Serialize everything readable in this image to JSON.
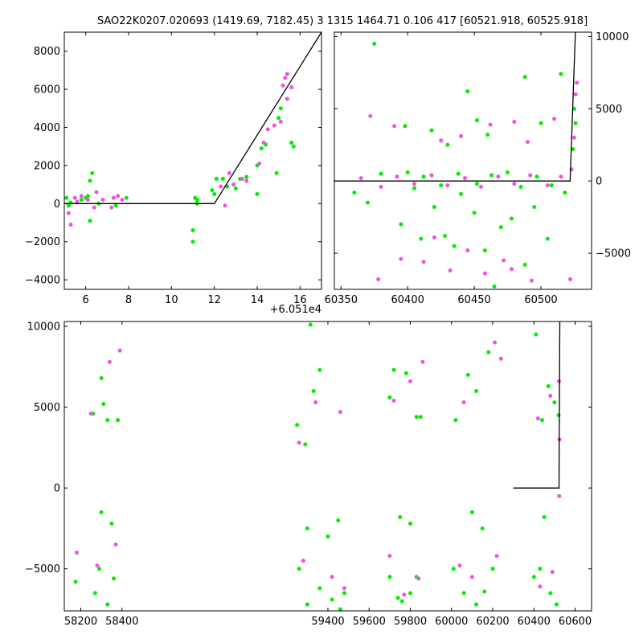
{
  "title": "SAO22K0207.020693 (1419.69, 7182.45)   3 1315 1464.71 0.106 417 [60521.918, 60525.918]",
  "colors": {
    "green": "#00ee00",
    "magenta": "#ee55dd",
    "model": "#000000"
  },
  "chart_data": [
    {
      "id": "top-left",
      "type": "scatter",
      "xlim": [
        5,
        17
      ],
      "ylim": [
        -4500,
        9000
      ],
      "xticks": [
        6,
        8,
        10,
        12,
        14,
        16
      ],
      "yticks": [
        -4000,
        -2000,
        0,
        2000,
        4000,
        6000,
        8000
      ],
      "xoffset_label": "+6.051e4",
      "yaxis_side": "left",
      "model_line": [
        [
          5,
          0
        ],
        [
          12,
          0
        ],
        [
          17,
          9000
        ]
      ],
      "series": [
        {
          "color": "green",
          "points": [
            [
              5.1,
              300
            ],
            [
              5.2,
              -100
            ],
            [
              5.3,
              50
            ],
            [
              5.8,
              200
            ],
            [
              6.0,
              300
            ],
            [
              6.1,
              400
            ],
            [
              6.2,
              -900
            ],
            [
              6.2,
              1200
            ],
            [
              6.3,
              1600
            ],
            [
              6.6,
              0
            ],
            [
              7.4,
              -100
            ],
            [
              7.9,
              300
            ],
            [
              11.0,
              -1400
            ],
            [
              11.0,
              -2000
            ],
            [
              11.1,
              300
            ],
            [
              11.2,
              200
            ],
            [
              11.2,
              0
            ],
            [
              11.9,
              700
            ],
            [
              12.0,
              500
            ],
            [
              12.1,
              1300
            ],
            [
              12.4,
              1300
            ],
            [
              12.6,
              900
            ],
            [
              13.0,
              800
            ],
            [
              13.2,
              1300
            ],
            [
              13.5,
              1400
            ],
            [
              14.0,
              500
            ],
            [
              14.0,
              2000
            ],
            [
              14.2,
              2900
            ],
            [
              14.4,
              3100
            ],
            [
              14.9,
              1600
            ],
            [
              15.0,
              4500
            ],
            [
              15.1,
              5000
            ],
            [
              15.6,
              3200
            ],
            [
              15.7,
              3000
            ]
          ]
        },
        {
          "color": "magenta",
          "points": [
            [
              5.2,
              -500
            ],
            [
              5.3,
              -1100
            ],
            [
              5.5,
              300
            ],
            [
              5.6,
              100
            ],
            [
              5.8,
              400
            ],
            [
              6.1,
              200
            ],
            [
              6.4,
              -200
            ],
            [
              6.5,
              600
            ],
            [
              6.8,
              200
            ],
            [
              7.2,
              -200
            ],
            [
              7.3,
              300
            ],
            [
              7.5,
              400
            ],
            [
              7.7,
              200
            ],
            [
              12.3,
              900
            ],
            [
              12.5,
              -100
            ],
            [
              12.7,
              1600
            ],
            [
              12.9,
              1000
            ],
            [
              13.3,
              1300
            ],
            [
              13.5,
              1200
            ],
            [
              14.1,
              2100
            ],
            [
              14.3,
              3200
            ],
            [
              14.5,
              3900
            ],
            [
              14.8,
              4100
            ],
            [
              15.1,
              4300
            ],
            [
              15.2,
              6200
            ],
            [
              15.3,
              6600
            ],
            [
              15.4,
              6800
            ],
            [
              15.4,
              5500
            ],
            [
              15.6,
              6100
            ]
          ]
        }
      ]
    },
    {
      "id": "top-right",
      "type": "scatter",
      "xlim": [
        60345,
        60538
      ],
      "ylim": [
        -7500,
        10300
      ],
      "xticks": [
        60350,
        60400,
        60450,
        60500
      ],
      "yticks": [
        -5000,
        0,
        5000,
        10000
      ],
      "yaxis_side": "right",
      "model_line": [
        [
          60345,
          0
        ],
        [
          60521.9,
          0
        ],
        [
          60525.9,
          10300
        ]
      ],
      "series": [
        {
          "color": "green",
          "points": [
            [
              60375,
              9500
            ],
            [
              60398,
              3800
            ],
            [
              60418,
              3500
            ],
            [
              60430,
              2500
            ],
            [
              60445,
              6200
            ],
            [
              60452,
              4200
            ],
            [
              60460,
              3200
            ],
            [
              60488,
              7200
            ],
            [
              60500,
              4000
            ],
            [
              60515,
              7400
            ],
            [
              60360,
              -800
            ],
            [
              60370,
              -1500
            ],
            [
              60380,
              500
            ],
            [
              60395,
              -3000
            ],
            [
              60405,
              -500
            ],
            [
              60410,
              -4000
            ],
            [
              60420,
              -1800
            ],
            [
              60428,
              -3800
            ],
            [
              60435,
              -4500
            ],
            [
              60440,
              -900
            ],
            [
              60450,
              -2200
            ],
            [
              60458,
              -4800
            ],
            [
              60465,
              -7300
            ],
            [
              60470,
              -3200
            ],
            [
              60478,
              -2600
            ],
            [
              60488,
              -5800
            ],
            [
              60495,
              -1800
            ],
            [
              60505,
              -4000
            ],
            [
              60518,
              -800
            ],
            [
              60400,
              600
            ],
            [
              60412,
              300
            ],
            [
              60425,
              -300
            ],
            [
              60438,
              500
            ],
            [
              60452,
              -200
            ],
            [
              60463,
              400
            ],
            [
              60475,
              600
            ],
            [
              60485,
              -400
            ],
            [
              60497,
              300
            ],
            [
              60508,
              -300
            ],
            [
              60524,
              2200
            ],
            [
              60525,
              5000
            ],
            [
              60526,
              4000
            ]
          ]
        },
        {
          "color": "magenta",
          "points": [
            [
              60372,
              4500
            ],
            [
              60390,
              3800
            ],
            [
              60425,
              2800
            ],
            [
              60440,
              3100
            ],
            [
              60462,
              3900
            ],
            [
              60480,
              4100
            ],
            [
              60490,
              2700
            ],
            [
              60510,
              4300
            ],
            [
              60378,
              -6800
            ],
            [
              60395,
              -5400
            ],
            [
              60412,
              -5600
            ],
            [
              60420,
              -3900
            ],
            [
              60432,
              -6200
            ],
            [
              60445,
              -4800
            ],
            [
              60458,
              -6400
            ],
            [
              60472,
              -5500
            ],
            [
              60478,
              -6100
            ],
            [
              60493,
              -6900
            ],
            [
              60522,
              -6800
            ],
            [
              60365,
              200
            ],
            [
              60380,
              -400
            ],
            [
              60392,
              300
            ],
            [
              60405,
              -200
            ],
            [
              60418,
              400
            ],
            [
              60430,
              -300
            ],
            [
              60443,
              200
            ],
            [
              60455,
              -400
            ],
            [
              60468,
              300
            ],
            [
              60480,
              -200
            ],
            [
              60492,
              400
            ],
            [
              60505,
              -300
            ],
            [
              60515,
              300
            ],
            [
              60523,
              800
            ],
            [
              60525,
              3000
            ],
            [
              60526,
              6000
            ],
            [
              60527,
              6800
            ]
          ]
        }
      ]
    },
    {
      "id": "bottom",
      "type": "scatter",
      "xlim": [
        58120,
        60680
      ],
      "ylim": [
        -7600,
        10300
      ],
      "xticks": [
        58200,
        58400,
        59400,
        59600,
        59800,
        60000,
        60200,
        60400,
        60600
      ],
      "yticks": [
        -5000,
        0,
        5000,
        10000
      ],
      "yaxis_side": "left",
      "model_line": [
        [
          60300,
          0
        ],
        [
          60521.9,
          0
        ],
        [
          60525.9,
          10300
        ]
      ],
      "series": [
        {
          "color": "green",
          "points": [
            [
              58175,
              -5800
            ],
            [
              58260,
              4600
            ],
            [
              58300,
              6800
            ],
            [
              58310,
              5200
            ],
            [
              58330,
              4200
            ],
            [
              58360,
              -5600
            ],
            [
              58380,
              4200
            ],
            [
              58290,
              -5000
            ],
            [
              58330,
              -7200
            ],
            [
              58270,
              -6500
            ],
            [
              59250,
              3900
            ],
            [
              59290,
              2700
            ],
            [
              59315,
              10100
            ],
            [
              59330,
              6000
            ],
            [
              59360,
              7300
            ],
            [
              59260,
              -5000
            ],
            [
              59300,
              -7200
            ],
            [
              59360,
              -6200
            ],
            [
              59420,
              -6900
            ],
            [
              59460,
              -7500
            ],
            [
              59480,
              -6500
            ],
            [
              59700,
              5600
            ],
            [
              59720,
              7300
            ],
            [
              59780,
              7100
            ],
            [
              59830,
              4400
            ],
            [
              59850,
              4400
            ],
            [
              59700,
              -5500
            ],
            [
              59740,
              -6800
            ],
            [
              59760,
              -7000
            ],
            [
              59800,
              -6500
            ],
            [
              59830,
              -5500
            ],
            [
              60020,
              4200
            ],
            [
              60080,
              7000
            ],
            [
              60120,
              6000
            ],
            [
              60180,
              8400
            ],
            [
              60010,
              -5000
            ],
            [
              60060,
              -6500
            ],
            [
              60120,
              -7200
            ],
            [
              60160,
              -6400
            ],
            [
              60200,
              -5000
            ],
            [
              60410,
              9500
            ],
            [
              60440,
              4200
            ],
            [
              60470,
              6300
            ],
            [
              60500,
              5300
            ],
            [
              60520,
              4500
            ],
            [
              60400,
              -5500
            ],
            [
              60430,
              -5000
            ],
            [
              60480,
              -6500
            ],
            [
              60510,
              -7200
            ],
            [
              58300,
              -1500
            ],
            [
              58350,
              -2200
            ],
            [
              59300,
              -2500
            ],
            [
              59400,
              -3000
            ],
            [
              59450,
              -2000
            ],
            [
              59750,
              -1800
            ],
            [
              59800,
              -2200
            ],
            [
              60100,
              -1500
            ],
            [
              60150,
              -2500
            ],
            [
              60450,
              -1800
            ]
          ]
        },
        {
          "color": "magenta",
          "points": [
            [
              58250,
              4600
            ],
            [
              58340,
              7800
            ],
            [
              58390,
              8500
            ],
            [
              58180,
              -4000
            ],
            [
              58280,
              -4800
            ],
            [
              58370,
              -3500
            ],
            [
              59260,
              2800
            ],
            [
              59340,
              5300
            ],
            [
              59460,
              4700
            ],
            [
              59280,
              -4500
            ],
            [
              59420,
              -5500
            ],
            [
              59480,
              -6200
            ],
            [
              59720,
              5400
            ],
            [
              59800,
              6600
            ],
            [
              59860,
              7800
            ],
            [
              59700,
              -4200
            ],
            [
              59770,
              -6600
            ],
            [
              59840,
              -5600
            ],
            [
              60060,
              5300
            ],
            [
              60210,
              9000
            ],
            [
              60240,
              8000
            ],
            [
              60040,
              -4800
            ],
            [
              60100,
              -5500
            ],
            [
              60220,
              -4200
            ],
            [
              60420,
              4300
            ],
            [
              60480,
              5700
            ],
            [
              60430,
              -6100
            ],
            [
              60490,
              -5200
            ],
            [
              60522,
              6600
            ],
            [
              60523,
              -500
            ],
            [
              60524,
              3000
            ]
          ]
        }
      ]
    }
  ]
}
